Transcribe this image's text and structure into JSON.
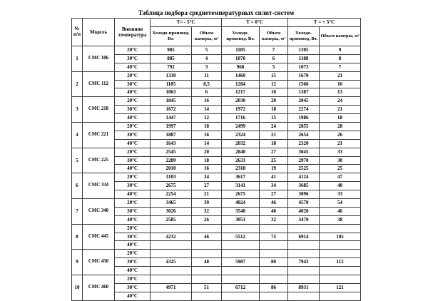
{
  "title": "Таблица подбора среднетемпературных сплит-систем",
  "headers": {
    "num": "№ п/п",
    "model": "Модель",
    "temp": "Внешняя температура",
    "groups": [
      {
        "label": "Т= - 5°С",
        "cold": "Холодо-производ. Вт.",
        "volume": "Объем камеры, м³"
      },
      {
        "label": "Т = 0°С",
        "cold": "Холодо-производ. Вт.",
        "volume": "Объем камеры, м³"
      },
      {
        "label": "Т = + 5°С",
        "cold": "Холодо-производ, Вт.",
        "volume": "Объем камеры, м³"
      }
    ]
  },
  "rows": [
    {
      "num": "1",
      "model": "СМС 106",
      "temps": [
        {
          "t": "20°С",
          "values": [
            "985",
            "5",
            "1185",
            "7",
            "1305",
            "9"
          ]
        },
        {
          "t": "30°С",
          "values": [
            "885",
            "4",
            "1070",
            "6",
            "1188",
            "8"
          ]
        },
        {
          "t": "40°С",
          "values": [
            "792",
            "3",
            "968",
            "5",
            "1073",
            "7"
          ]
        }
      ]
    },
    {
      "num": "2",
      "model": "СМС 112",
      "temps": [
        {
          "t": "20°С",
          "values": [
            "1330",
            "11",
            "1460",
            "15",
            "1670",
            "21"
          ]
        },
        {
          "t": "30°С",
          "values": [
            "1185",
            "8,5",
            "1284",
            "12",
            "1566",
            "16"
          ]
        },
        {
          "t": "40°С",
          "values": [
            "1063",
            "6",
            "1217",
            "10",
            "1387",
            "13"
          ]
        }
      ]
    },
    {
      "num": "3",
      "model": "СМС 218",
      "temps": [
        {
          "t": "20°С",
          "values": [
            "1845",
            "16",
            "2030",
            "20",
            "2045",
            "24"
          ]
        },
        {
          "t": "30°С",
          "values": [
            "1672",
            "14",
            "1972",
            "18",
            "2274",
            "21"
          ]
        },
        {
          "t": "40°С",
          "values": [
            "1447",
            "12",
            "1716",
            "15",
            "1986",
            "18"
          ]
        }
      ]
    },
    {
      "num": "4",
      "model": "СМС 221",
      "temps": [
        {
          "t": "20°С",
          "values": [
            "1997",
            "18",
            "2499",
            "24",
            "2855",
            "28"
          ]
        },
        {
          "t": "30°С",
          "values": [
            "1887",
            "16",
            "2324",
            "21",
            "2654",
            "26"
          ]
        },
        {
          "t": "40°С",
          "values": [
            "1643",
            "14",
            "2032",
            "18",
            "2320",
            "21"
          ]
        }
      ]
    },
    {
      "num": "5",
      "model": "СМС 225",
      "temps": [
        {
          "t": "20°С",
          "values": [
            "2545",
            "20",
            "2840",
            "27",
            "3045",
            "33"
          ]
        },
        {
          "t": "30°С",
          "values": [
            "2289",
            "18",
            "2633",
            "25",
            "2970",
            "30"
          ]
        },
        {
          "t": "40°С",
          "values": [
            "2010",
            "16",
            "2318",
            "19",
            "2525",
            "25"
          ]
        }
      ]
    },
    {
      "num": "6",
      "model": "СМС 334",
      "temps": [
        {
          "t": "20°С",
          "values": [
            "3103",
            "34",
            "3617",
            "41",
            "4124",
            "47"
          ]
        },
        {
          "t": "30°С",
          "values": [
            "2675",
            "27",
            "3141",
            "34",
            "3685",
            "40"
          ]
        },
        {
          "t": "40°С",
          "values": [
            "2254",
            "21",
            "2675",
            "27",
            "3096",
            "33"
          ]
        }
      ]
    },
    {
      "num": "7",
      "model": "СМС 340",
      "temps": [
        {
          "t": "20°С",
          "values": [
            "3465",
            "39",
            "4024",
            "46",
            "4570",
            "54"
          ]
        },
        {
          "t": "30°С",
          "values": [
            "3026",
            "32",
            "3540",
            "40",
            "4020",
            "46"
          ]
        },
        {
          "t": "40°С",
          "values": [
            "2585",
            "26",
            "3051",
            "32",
            "3470",
            "38"
          ]
        }
      ]
    },
    {
      "num": "8",
      "model": "СМС 445",
      "temps": [
        {
          "t": "20°С",
          "values": [
            "",
            "",
            "",
            "",
            "",
            ""
          ]
        },
        {
          "t": "30°С",
          "values": [
            "4232",
            "46",
            "5512",
            "75",
            "6914",
            "105"
          ]
        },
        {
          "t": "40°С",
          "values": [
            "",
            "",
            "",
            "",
            "",
            ""
          ]
        }
      ]
    },
    {
      "num": "9",
      "model": "СМС 450",
      "temps": [
        {
          "t": "20°С",
          "values": [
            "",
            "",
            "",
            "",
            "",
            ""
          ]
        },
        {
          "t": "30°С",
          "values": [
            "4325",
            "48",
            "5987",
            "80",
            "7943",
            "112"
          ]
        },
        {
          "t": "40°С",
          "values": [
            "",
            "",
            "",
            "",
            "",
            ""
          ]
        }
      ]
    },
    {
      "num": "10",
      "model": "СМС 460",
      "temps": [
        {
          "t": "20°С",
          "values": [
            "",
            "",
            "",
            "",
            "",
            ""
          ]
        },
        {
          "t": "30°С",
          "values": [
            "4971",
            "51",
            "6712",
            "86",
            "8931",
            "121"
          ]
        },
        {
          "t": "40°С",
          "values": [
            "",
            "",
            "",
            "",
            "",
            ""
          ]
        }
      ]
    }
  ]
}
